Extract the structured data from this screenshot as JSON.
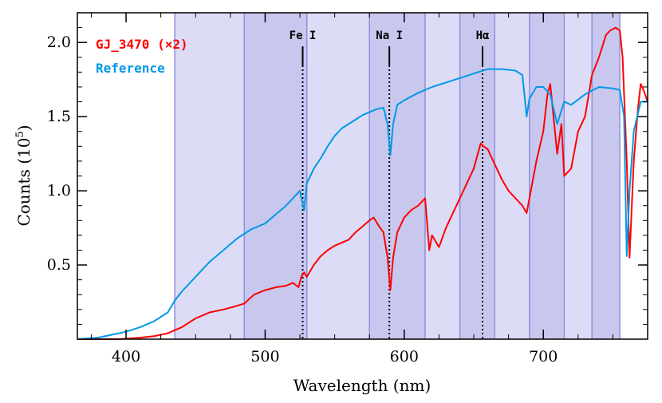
{
  "chart_data": {
    "type": "line",
    "xlabel": "Wavelength (nm)",
    "ylabel_main": "Counts (10",
    "ylabel_exp": "5",
    "ylabel_close": ")",
    "xlim": [
      365,
      775
    ],
    "ylim": [
      0,
      2.2
    ],
    "xticks": [
      400,
      500,
      600,
      700
    ],
    "xtick_labels": [
      "400",
      "500",
      "600",
      "700"
    ],
    "yticks": [
      0.5,
      1.0,
      1.5,
      2.0
    ],
    "ytick_labels": [
      "0.5",
      "1.0",
      "1.5",
      "2.0"
    ],
    "grid": false,
    "legend_position": "top-left",
    "series": [
      {
        "name": "GJ_3470 (×2)",
        "color": "#ff0000",
        "x": [
          365,
          380,
          395,
          410,
          420,
          430,
          440,
          450,
          460,
          470,
          478,
          485,
          492,
          500,
          508,
          515,
          520,
          524,
          526,
          528,
          530,
          535,
          540,
          545,
          550,
          555,
          560,
          565,
          570,
          575,
          578,
          582,
          585,
          588,
          590,
          592,
          595,
          600,
          605,
          610,
          615,
          618,
          620,
          625,
          630,
          635,
          640,
          645,
          650,
          655,
          657,
          660,
          665,
          670,
          675,
          680,
          685,
          688,
          690,
          695,
          700,
          703,
          705,
          710,
          713,
          715,
          720,
          725,
          730,
          735,
          740,
          745,
          748,
          752,
          755,
          757,
          760,
          762,
          765,
          768,
          770,
          772,
          775
        ],
        "values": [
          0.0,
          0.0,
          0.0,
          0.01,
          0.02,
          0.04,
          0.08,
          0.14,
          0.18,
          0.2,
          0.22,
          0.24,
          0.3,
          0.33,
          0.35,
          0.36,
          0.38,
          0.35,
          0.42,
          0.45,
          0.42,
          0.5,
          0.56,
          0.6,
          0.63,
          0.65,
          0.67,
          0.72,
          0.76,
          0.8,
          0.82,
          0.76,
          0.72,
          0.55,
          0.33,
          0.55,
          0.72,
          0.82,
          0.87,
          0.9,
          0.95,
          0.6,
          0.7,
          0.62,
          0.75,
          0.85,
          0.95,
          1.05,
          1.15,
          1.32,
          1.3,
          1.28,
          1.18,
          1.08,
          1.0,
          0.95,
          0.9,
          0.85,
          0.95,
          1.2,
          1.4,
          1.65,
          1.72,
          1.25,
          1.45,
          1.1,
          1.15,
          1.4,
          1.5,
          1.78,
          1.9,
          2.05,
          2.08,
          2.1,
          2.08,
          1.9,
          1.2,
          0.55,
          1.2,
          1.55,
          1.72,
          1.68,
          1.6
        ]
      },
      {
        "name": "Reference",
        "color": "#0099e6",
        "x": [
          365,
          380,
          390,
          400,
          410,
          420,
          430,
          435,
          440,
          450,
          460,
          470,
          480,
          490,
          500,
          505,
          510,
          515,
          520,
          525,
          528,
          530,
          535,
          540,
          545,
          550,
          555,
          560,
          565,
          570,
          575,
          580,
          585,
          588,
          590,
          592,
          595,
          600,
          610,
          620,
          630,
          640,
          650,
          660,
          670,
          680,
          685,
          688,
          690,
          695,
          700,
          705,
          710,
          715,
          720,
          730,
          740,
          750,
          755,
          758,
          760,
          762,
          765,
          770,
          775
        ],
        "values": [
          0.0,
          0.01,
          0.03,
          0.05,
          0.08,
          0.12,
          0.18,
          0.26,
          0.32,
          0.42,
          0.52,
          0.6,
          0.68,
          0.74,
          0.78,
          0.82,
          0.86,
          0.9,
          0.95,
          1.0,
          0.87,
          1.05,
          1.15,
          1.22,
          1.3,
          1.37,
          1.42,
          1.45,
          1.48,
          1.51,
          1.53,
          1.55,
          1.56,
          1.45,
          1.24,
          1.45,
          1.58,
          1.61,
          1.66,
          1.7,
          1.73,
          1.76,
          1.79,
          1.82,
          1.82,
          1.81,
          1.78,
          1.5,
          1.62,
          1.7,
          1.7,
          1.65,
          1.45,
          1.6,
          1.58,
          1.65,
          1.7,
          1.69,
          1.68,
          1.5,
          0.56,
          1.0,
          1.4,
          1.6,
          1.6
        ]
      }
    ],
    "bands": [
      {
        "x0": 435,
        "x1": 485,
        "shade": "light"
      },
      {
        "x0": 485,
        "x1": 530,
        "shade": "dark"
      },
      {
        "x0": 530,
        "x1": 575,
        "shade": "light"
      },
      {
        "x0": 575,
        "x1": 615,
        "shade": "dark"
      },
      {
        "x0": 615,
        "x1": 640,
        "shade": "light"
      },
      {
        "x0": 640,
        "x1": 665,
        "shade": "dark"
      },
      {
        "x0": 665,
        "x1": 690,
        "shade": "light"
      },
      {
        "x0": 690,
        "x1": 715,
        "shade": "dark"
      },
      {
        "x0": 715,
        "x1": 735,
        "shade": "light"
      },
      {
        "x0": 735,
        "x1": 755,
        "shade": "dark"
      }
    ],
    "band_colors": {
      "light": "#dcdcf7",
      "dark": "#c8c8ee",
      "edge": "#8f8fe0"
    },
    "spectral_lines": [
      {
        "label": "Fe I",
        "x": 527.0
      },
      {
        "label": "Na I",
        "x": 589.3
      },
      {
        "label": "Hα",
        "x": 656.3
      }
    ]
  }
}
